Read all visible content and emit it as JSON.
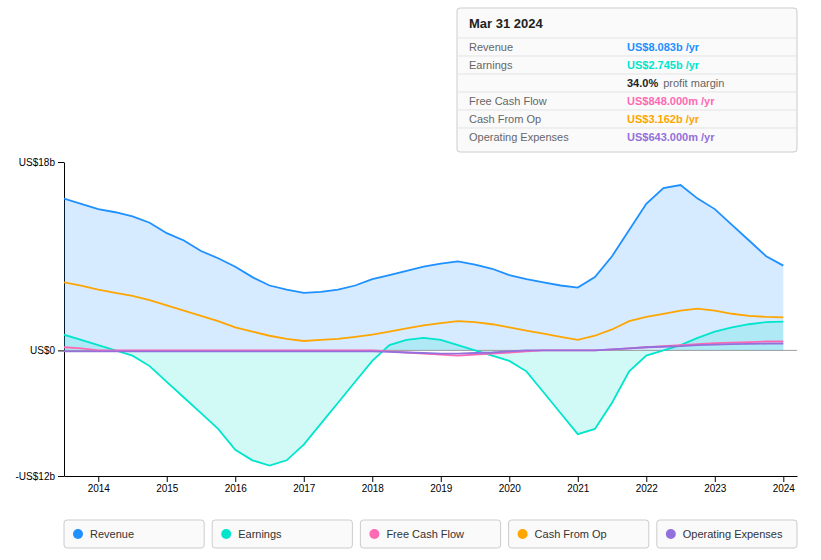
{
  "chart_data": {
    "type": "line",
    "title": "Mar 31 2024",
    "x": [
      2013.5,
      2013.75,
      2014.0,
      2014.25,
      2014.5,
      2014.75,
      2015.0,
      2015.25,
      2015.5,
      2015.75,
      2016.0,
      2016.25,
      2016.5,
      2016.75,
      2017.0,
      2017.25,
      2017.5,
      2017.75,
      2018.0,
      2018.25,
      2018.5,
      2018.75,
      2019.0,
      2019.25,
      2019.5,
      2019.75,
      2020.0,
      2020.25,
      2020.5,
      2020.75,
      2021.0,
      2021.25,
      2021.5,
      2021.75,
      2022.0,
      2022.25,
      2022.5,
      2022.75,
      2023.0,
      2023.25,
      2023.5,
      2023.75,
      2024.0
    ],
    "series": [
      {
        "name": "Revenue",
        "color": "#1e90ff",
        "type": "area",
        "values": [
          14.5,
          14.0,
          13.5,
          13.2,
          12.8,
          12.2,
          11.2,
          10.5,
          9.5,
          8.8,
          8.0,
          7.0,
          6.2,
          5.8,
          5.5,
          5.6,
          5.8,
          6.2,
          6.8,
          7.2,
          7.6,
          8.0,
          8.3,
          8.5,
          8.2,
          7.8,
          7.2,
          6.8,
          6.5,
          6.2,
          6.0,
          7.0,
          9.0,
          11.5,
          14.0,
          15.5,
          15.8,
          14.5,
          13.5,
          12.0,
          10.5,
          9.0,
          8.1
        ]
      },
      {
        "name": "Earnings",
        "color": "#00e5cc",
        "type": "area",
        "values": [
          1.5,
          1.0,
          0.5,
          0.0,
          -0.5,
          -1.5,
          -3.0,
          -4.5,
          -6.0,
          -7.5,
          -9.5,
          -10.5,
          -11.0,
          -10.5,
          -9.0,
          -7.0,
          -5.0,
          -3.0,
          -1.0,
          0.5,
          1.0,
          1.2,
          1.0,
          0.5,
          0.0,
          -0.5,
          -1.0,
          -2.0,
          -4.0,
          -6.0,
          -8.0,
          -7.5,
          -5.0,
          -2.0,
          -0.5,
          0.0,
          0.5,
          1.2,
          1.8,
          2.2,
          2.5,
          2.7,
          2.745
        ]
      },
      {
        "name": "Free Cash Flow",
        "color": "#ff69b4",
        "type": "line",
        "values": [
          0.3,
          0.2,
          0.0,
          0.0,
          0.0,
          0.0,
          0.0,
          0.0,
          0.0,
          0.0,
          0.0,
          0.0,
          0.0,
          0.0,
          0.0,
          0.0,
          0.0,
          0.0,
          0.0,
          -0.1,
          -0.2,
          -0.3,
          -0.4,
          -0.5,
          -0.4,
          -0.3,
          -0.2,
          -0.1,
          0.0,
          0.0,
          0.0,
          0.0,
          0.1,
          0.2,
          0.3,
          0.4,
          0.5,
          0.6,
          0.7,
          0.75,
          0.8,
          0.848,
          0.848
        ]
      },
      {
        "name": "Cash From Op",
        "color": "#ffa500",
        "type": "line",
        "values": [
          6.5,
          6.2,
          5.8,
          5.5,
          5.2,
          4.8,
          4.3,
          3.8,
          3.3,
          2.8,
          2.2,
          1.8,
          1.4,
          1.1,
          0.9,
          1.0,
          1.1,
          1.3,
          1.5,
          1.8,
          2.1,
          2.4,
          2.6,
          2.8,
          2.7,
          2.5,
          2.2,
          1.9,
          1.6,
          1.3,
          1.0,
          1.4,
          2.0,
          2.8,
          3.2,
          3.5,
          3.8,
          4.0,
          3.8,
          3.5,
          3.3,
          3.2,
          3.162
        ]
      },
      {
        "name": "Operating Expenses",
        "color": "#9370db",
        "type": "line",
        "values": [
          -0.1,
          -0.1,
          -0.1,
          -0.1,
          -0.1,
          -0.1,
          -0.1,
          -0.1,
          -0.1,
          -0.1,
          -0.1,
          -0.1,
          -0.1,
          -0.1,
          -0.1,
          -0.1,
          -0.1,
          -0.1,
          -0.1,
          -0.15,
          -0.2,
          -0.25,
          -0.3,
          -0.3,
          -0.25,
          -0.2,
          -0.1,
          0.0,
          0.0,
          0.0,
          0.0,
          0.0,
          0.1,
          0.2,
          0.3,
          0.35,
          0.4,
          0.5,
          0.55,
          0.6,
          0.62,
          0.643,
          0.643
        ]
      }
    ],
    "xlim": [
      2013.5,
      2024.2
    ],
    "xticks": [
      2014,
      2015,
      2016,
      2017,
      2018,
      2019,
      2020,
      2021,
      2022,
      2023,
      2024
    ],
    "ylim": [
      -12,
      18
    ],
    "yticks": [
      {
        "value": -12,
        "label": "-US$12b"
      },
      {
        "value": 0,
        "label": "US$0"
      },
      {
        "value": 18,
        "label": "US$18b"
      }
    ],
    "grid": false,
    "legend": "bottom",
    "annotations": [
      {
        "label": "Revenue",
        "text": "US$8.083b /yr",
        "color": "#1e90ff"
      },
      {
        "label": "Earnings",
        "text": "US$2.745b /yr",
        "color": "#00e5cc"
      },
      {
        "text": "34.0%",
        "note": "profit margin"
      },
      {
        "label": "Free Cash Flow",
        "text": "US$848.000m /yr",
        "color": "#ff69b4"
      },
      {
        "label": "Cash From Op",
        "text": "US$3.162b /yr",
        "color": "#ffa500"
      },
      {
        "label": "Operating Expenses",
        "text": "US$643.000m /yr",
        "color": "#9370db"
      }
    ]
  }
}
